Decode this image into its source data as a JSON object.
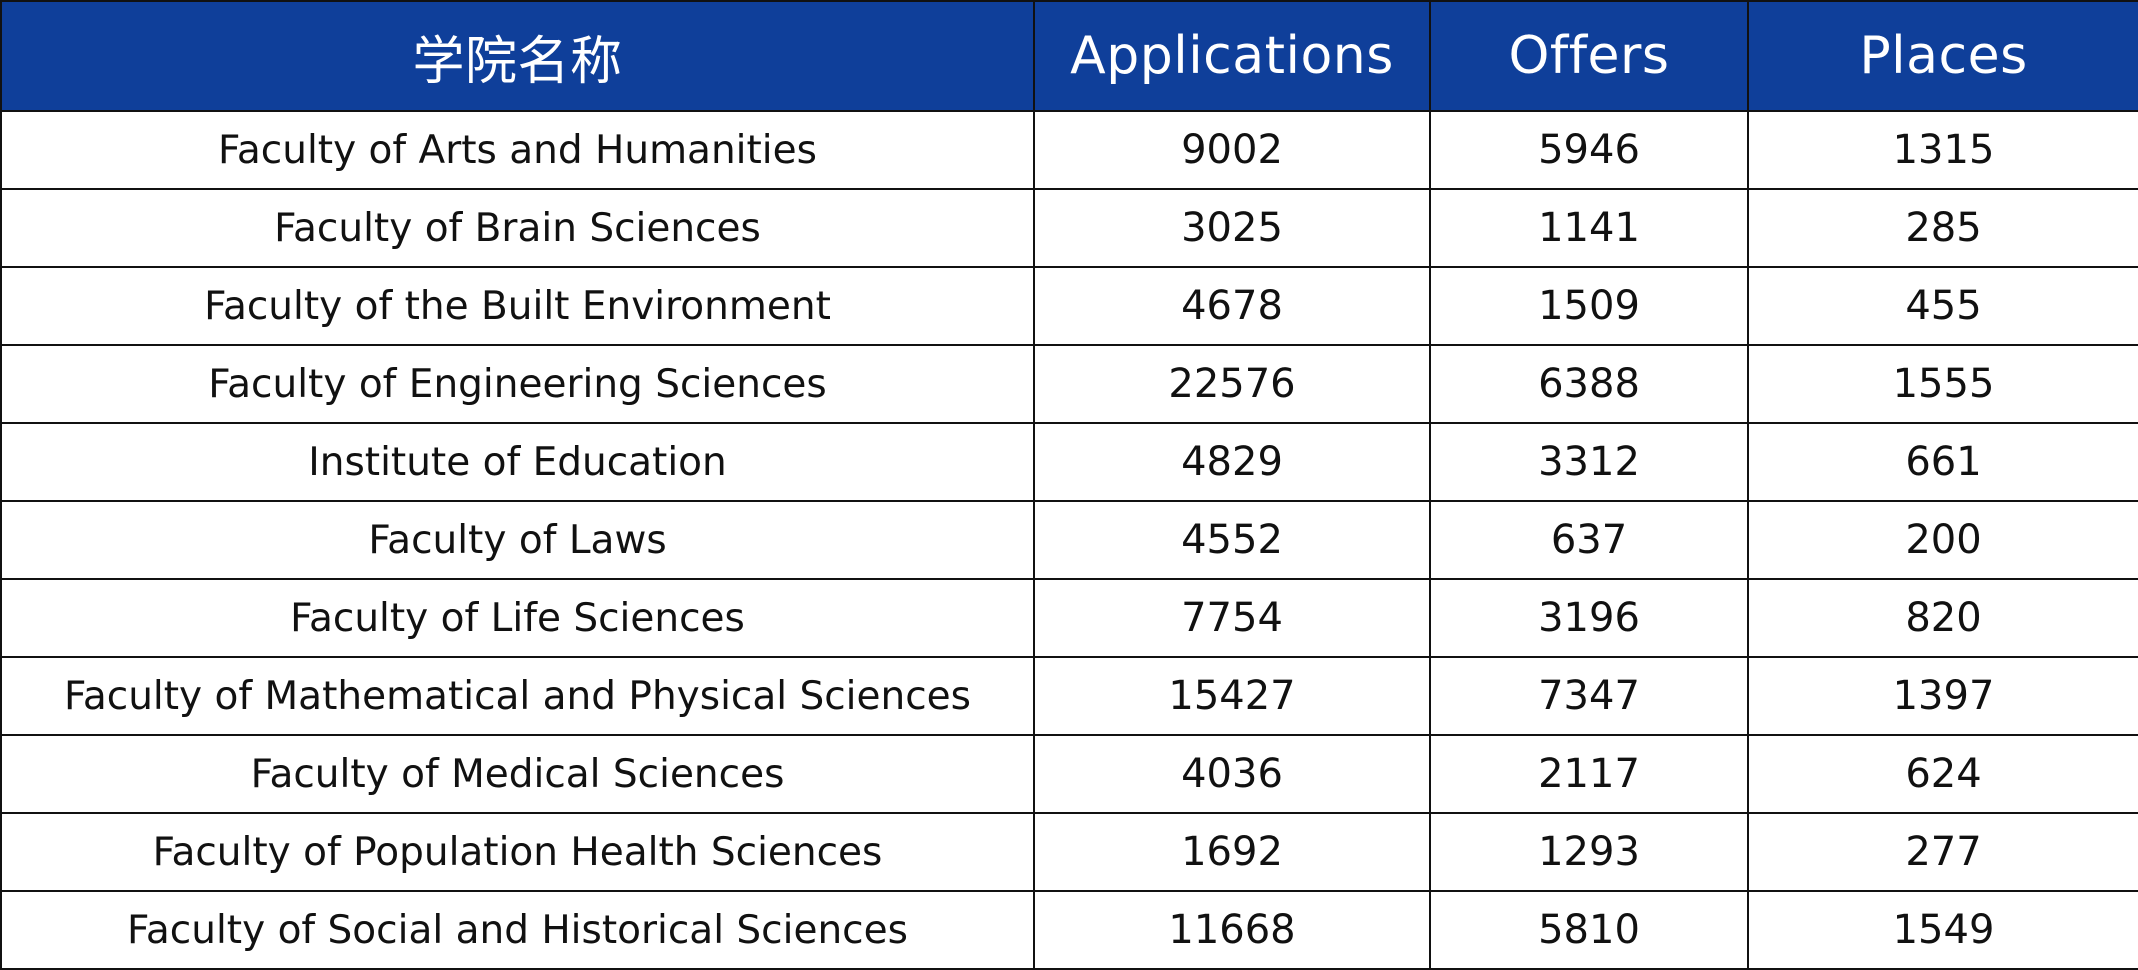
{
  "table": {
    "headers": [
      "学院名称",
      "Applications",
      "Offers",
      "Places"
    ],
    "rows": [
      [
        "Faculty of Arts and Humanities",
        "9002",
        "5946",
        "1315"
      ],
      [
        "Faculty of Brain Sciences",
        "3025",
        "1141",
        "285"
      ],
      [
        "Faculty of the Built Environment",
        "4678",
        "1509",
        "455"
      ],
      [
        "Faculty of Engineering Sciences",
        "22576",
        "6388",
        "1555"
      ],
      [
        "Institute of Education",
        "4829",
        "3312",
        "661"
      ],
      [
        "Faculty of Laws",
        "4552",
        "637",
        "200"
      ],
      [
        "Faculty of Life Sciences",
        "7754",
        "3196",
        "820"
      ],
      [
        "Faculty of Mathematical and Physical Sciences",
        "15427",
        "7347",
        "1397"
      ],
      [
        "Faculty of Medical Sciences",
        "4036",
        "2117",
        "624"
      ],
      [
        "Faculty of Population Health Sciences",
        "1692",
        "1293",
        "277"
      ],
      [
        "Faculty of Social and Historical Sciences",
        "11668",
        "5810",
        "1549"
      ]
    ]
  },
  "colors": {
    "header_background": "#0f3f9a",
    "header_text": "#ffffff",
    "cell_text": "#111111",
    "border": "#111111"
  }
}
